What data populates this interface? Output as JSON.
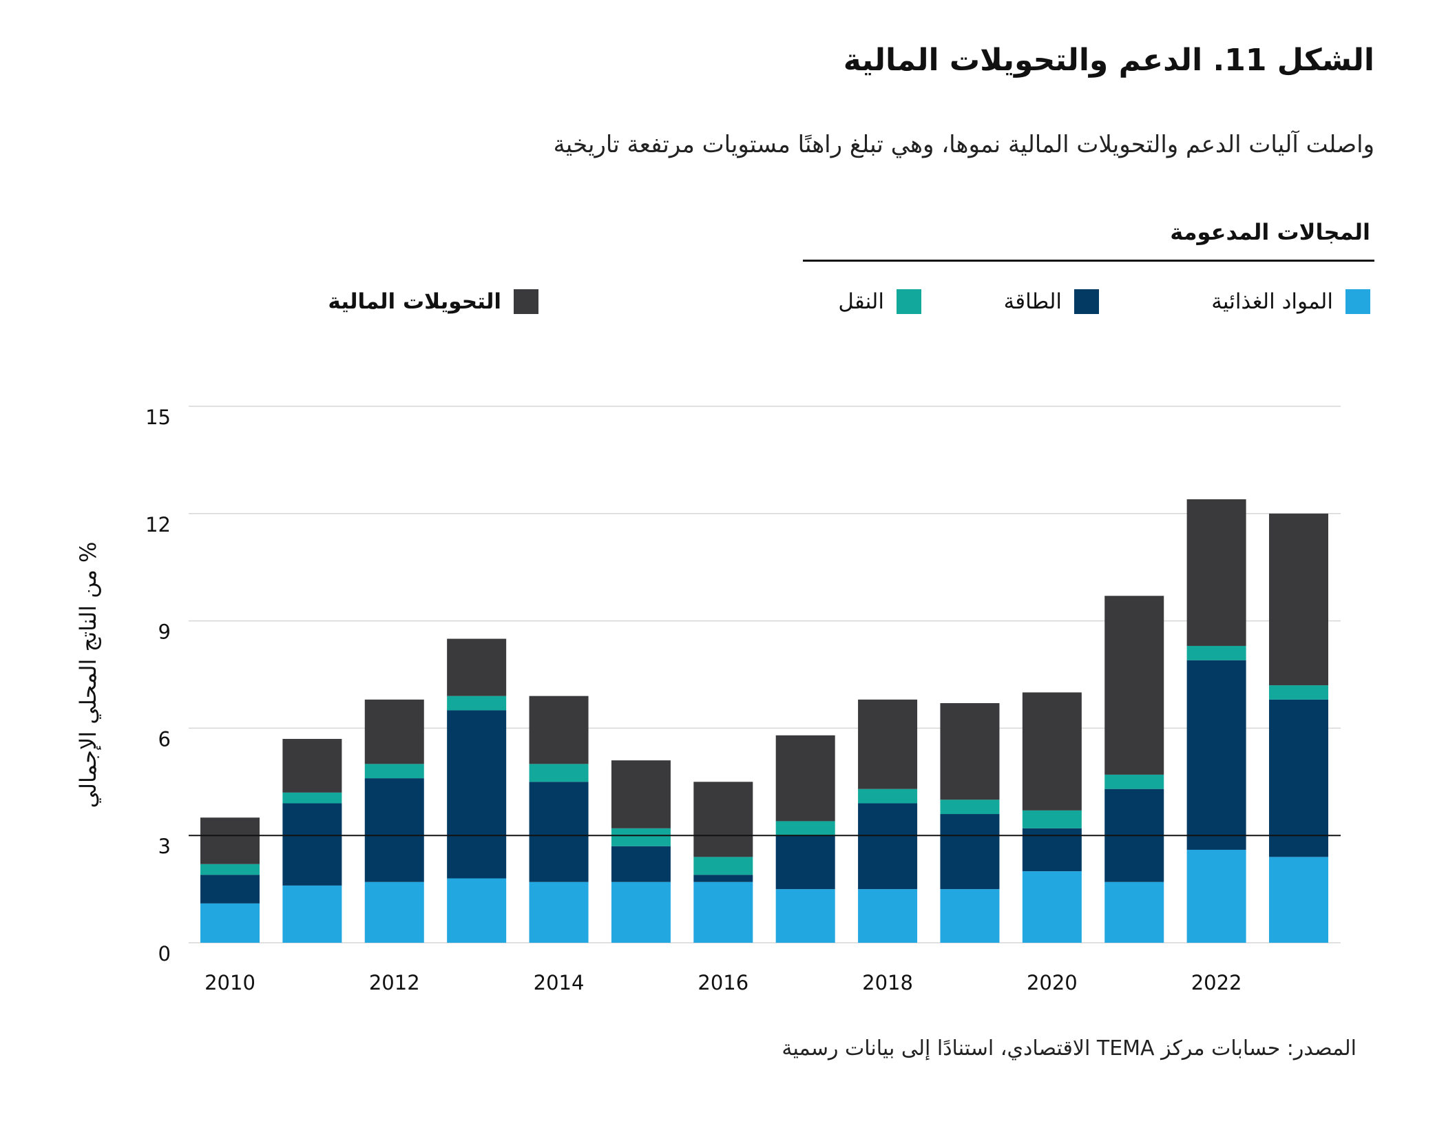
{
  "title": "الشكل 11. الدعم والتحويلات المالية",
  "subtitle": "واصلت آليات الدعم والتحويلات المالية نموها، وهي تبلغ راهنًا مستويات مرتفعة تاريخية",
  "legend": {
    "group_title": "المجالات المدعومة",
    "items": [
      {
        "label": "المواد الغذائية",
        "color": "#22a7e0"
      },
      {
        "label": "الطاقة",
        "color": "#033a63"
      },
      {
        "label": "النقل",
        "color": "#12a89b"
      },
      {
        "label": "التحويلات المالية",
        "color": "#3a3a3c"
      }
    ]
  },
  "source": "المصدر: حسابات مركز TEMA الاقتصادي، استنادًا إلى بيانات رسمية",
  "chart_data": {
    "type": "bar",
    "stacked": true,
    "title": "الشكل 11. الدعم والتحويلات المالية",
    "ylabel": "% من الناتج المحلي الإجمالي",
    "xlabel": "",
    "ylim": [
      0,
      15
    ],
    "yticks": [
      "0",
      "3",
      "6",
      "9",
      "12",
      "15"
    ],
    "grid": true,
    "reference_line": 3,
    "legend_position": "top",
    "categories": [
      "2010",
      "2011",
      "2012",
      "2013",
      "2014",
      "2015",
      "2016",
      "2017",
      "2018",
      "2019",
      "2020",
      "2021",
      "2022",
      "2023"
    ],
    "xtick_labels": [
      "2010",
      "2012",
      "2014",
      "2016",
      "2018",
      "2020",
      "2022"
    ],
    "series": [
      {
        "name": "المواد الغذائية",
        "color": "#22a7e0",
        "values": [
          1.1,
          1.6,
          1.7,
          1.8,
          1.7,
          1.7,
          1.7,
          1.5,
          1.5,
          1.5,
          2.0,
          1.7,
          2.6,
          2.4
        ]
      },
      {
        "name": "الطاقة",
        "color": "#033a63",
        "values": [
          0.8,
          2.3,
          2.9,
          4.7,
          2.8,
          1.0,
          0.2,
          1.5,
          2.4,
          2.1,
          1.2,
          2.6,
          5.3,
          4.4
        ]
      },
      {
        "name": "النقل",
        "color": "#12a89b",
        "values": [
          0.3,
          0.3,
          0.4,
          0.4,
          0.5,
          0.5,
          0.5,
          0.4,
          0.4,
          0.4,
          0.5,
          0.4,
          0.4,
          0.4
        ]
      },
      {
        "name": "التحويلات المالية",
        "color": "#3a3a3c",
        "values": [
          1.3,
          1.5,
          1.8,
          1.6,
          1.9,
          1.9,
          2.1,
          2.4,
          2.5,
          2.7,
          3.3,
          5.0,
          4.1,
          4.8
        ]
      }
    ]
  }
}
